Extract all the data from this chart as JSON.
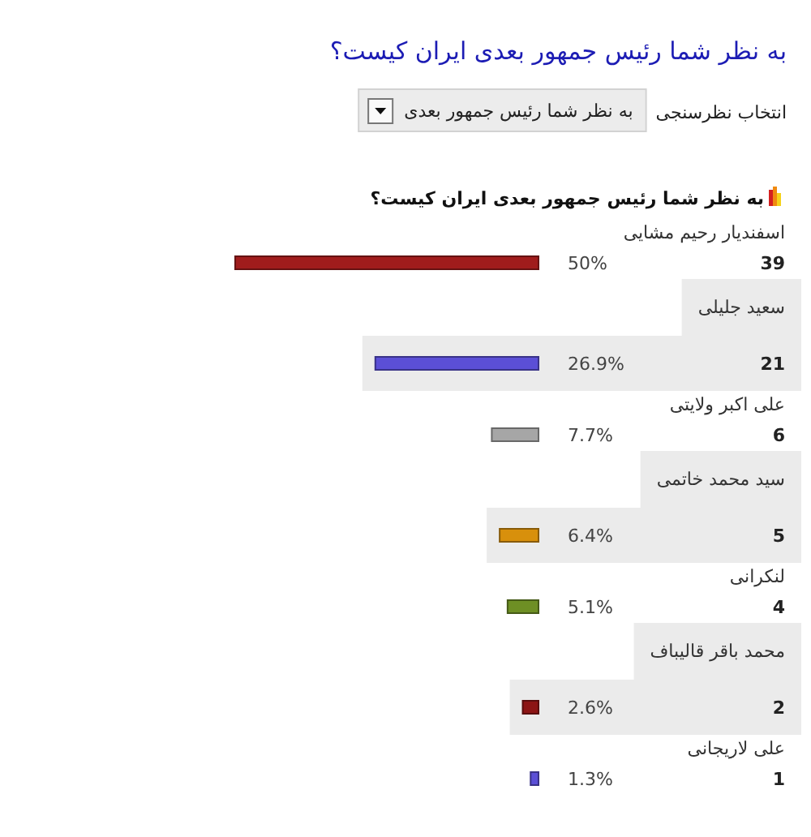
{
  "chart_data": {
    "type": "bar",
    "orientation": "horizontal",
    "title": "به نظر شما رئیس جمهور بعدی ایران کیست؟",
    "subtitle": "به نظر شما رئیس جمهور بعدی ایران کیست؟",
    "annotations": [
      "انتخاب نظرسنجی",
      "به نظر شما رئیس جمهور بعدی",
      "39",
      "21",
      "6",
      "5",
      "4",
      "2",
      "1"
    ],
    "categories": [
      "اسفندیار رحیم مشایی",
      "سعید جلیلی",
      "علی اکبر ولایتی",
      "سید محمد خاتمی",
      "لنکرانی",
      "محمد باقر قالیباف",
      "علی لاریجانی"
    ],
    "values": [
      50,
      26.9,
      7.7,
      6.4,
      5.1,
      2.6,
      1.3
    ],
    "colors": [
      "#a01c1c",
      "#5b4fd6",
      "#a6a6a6",
      "#d8900c",
      "#6e8f24",
      "#8c1414",
      "#5b4fd6"
    ],
    "value_labels": [
      "50%",
      "26.9%",
      "7.7%",
      "6.4%",
      "5.1%",
      "2.6%",
      "1.3%"
    ]
  }
}
